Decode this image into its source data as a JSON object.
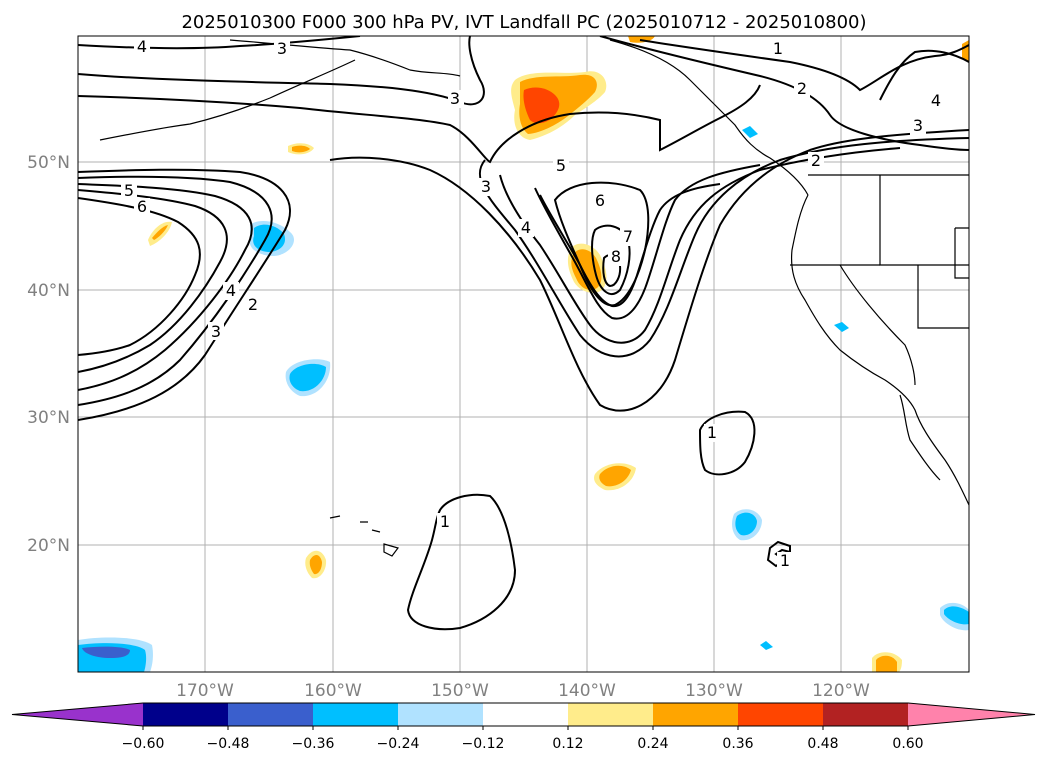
{
  "title": "2025010300 F000 300 hPa PV, IVT Landfall PC (2025010712 - 2025010800)",
  "map": {
    "lat_labels": [
      "50°N",
      "40°N",
      "30°N",
      "20°N"
    ],
    "lon_labels": [
      "170°W",
      "160°W",
      "150°W",
      "140°W",
      "130°W",
      "120°W"
    ],
    "contour_labels": [
      "4",
      "3",
      "3",
      "1",
      "2",
      "3",
      "4",
      "3",
      "5",
      "6",
      "5",
      "2",
      "3",
      "6",
      "4",
      "7",
      "8",
      "4",
      "2",
      "3",
      "1",
      "1",
      "1"
    ],
    "colors": {
      "background": "#ffffff",
      "coast": "#000000",
      "grid": "#b0b0b0",
      "contour": "#000000"
    }
  },
  "colorbar": {
    "ticks": [
      "−0.60",
      "−0.48",
      "−0.36",
      "−0.24",
      "−0.12",
      "0.12",
      "0.24",
      "0.36",
      "0.48",
      "0.60"
    ],
    "colors": [
      "#9932cc",
      "#00008b",
      "#3a5fcd",
      "#00bfff",
      "#b0e2ff",
      "#ffffff",
      "#ffec8b",
      "#ffa500",
      "#ff4500",
      "#b22222",
      "#ff82ab"
    ]
  }
}
